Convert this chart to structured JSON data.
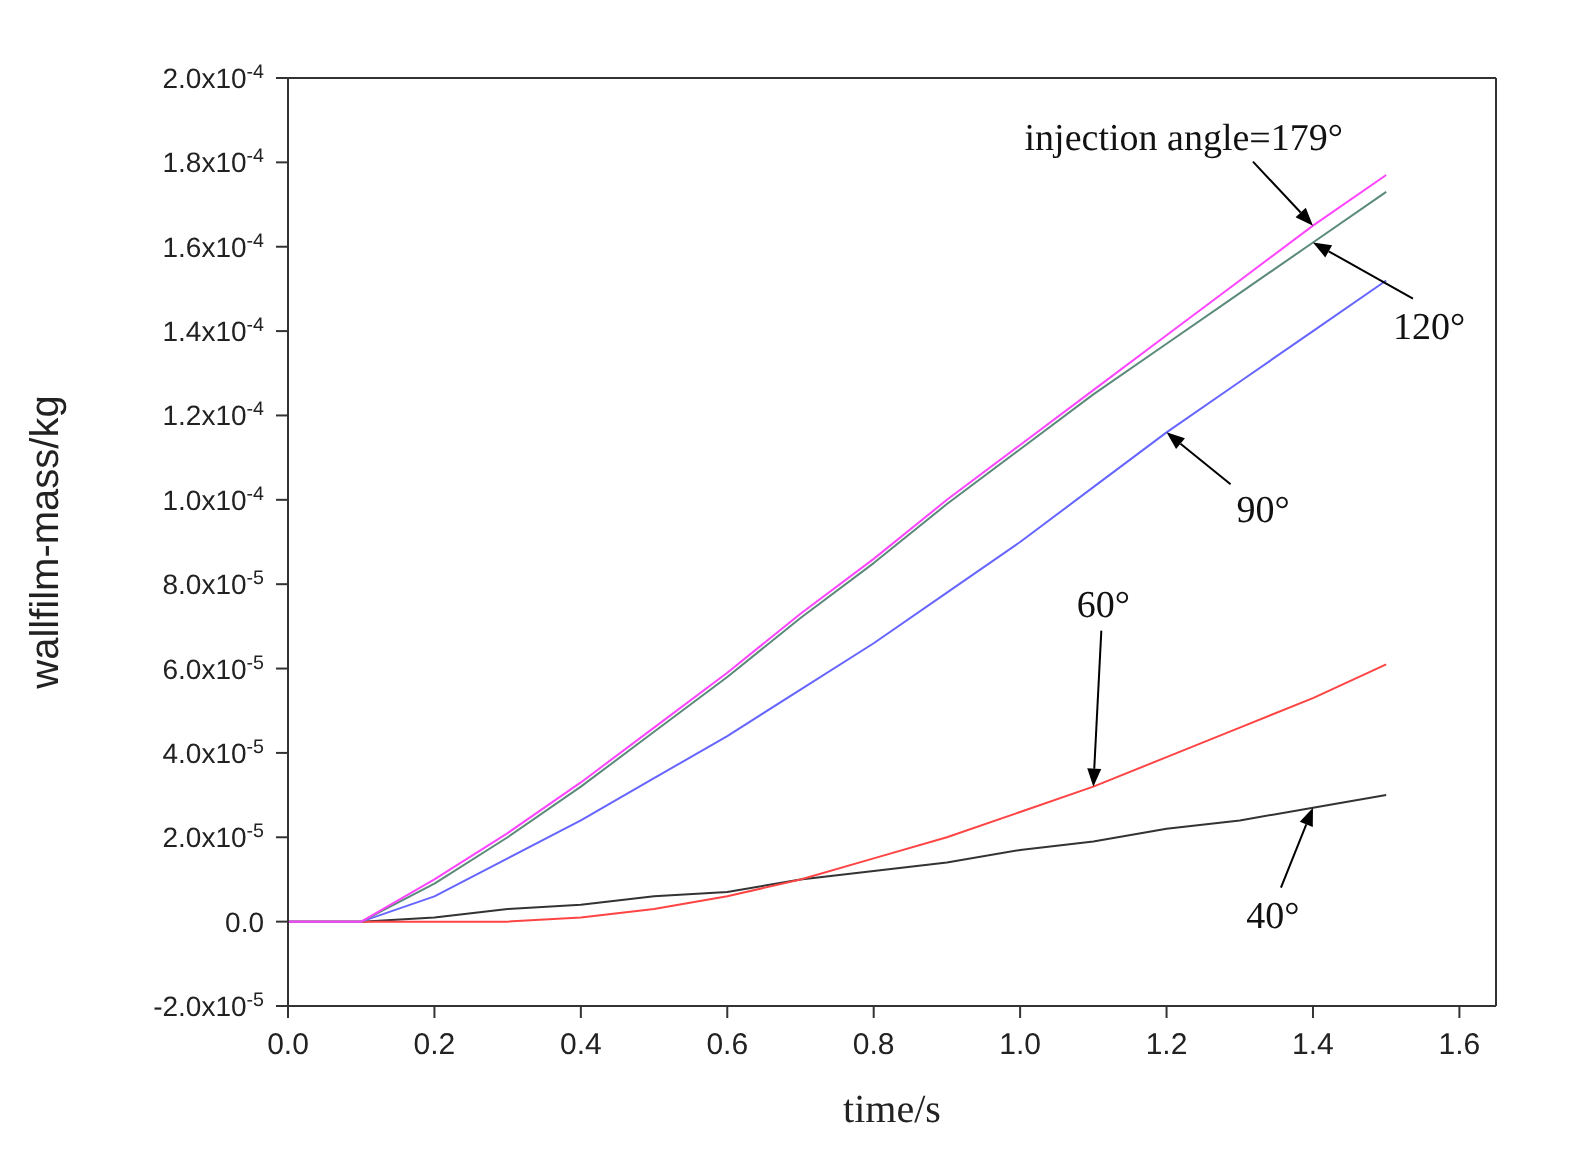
{
  "chart_data": {
    "type": "line",
    "xlabel": "time/s",
    "ylabel": "wallfilm-mass/kg",
    "x": [
      0,
      0.1,
      0.2,
      0.3,
      0.4,
      0.5,
      0.6,
      0.7,
      0.8,
      0.9,
      1.0,
      1.1,
      1.2,
      1.3,
      1.4,
      1.5
    ],
    "series": [
      {
        "name": "injection angle=179°",
        "color": "#ff44ff",
        "values": [
          0,
          0,
          1e-05,
          2.1e-05,
          3.3e-05,
          4.6e-05,
          5.9e-05,
          7.3e-05,
          8.6e-05,
          0.0001,
          0.000113,
          0.000126,
          0.000139,
          0.000152,
          0.000165,
          0.000177
        ]
      },
      {
        "name": "120°",
        "color": "#5a8a7a",
        "values": [
          0,
          0,
          9e-06,
          2e-05,
          3.2e-05,
          4.5e-05,
          5.8e-05,
          7.2e-05,
          8.5e-05,
          9.9e-05,
          0.000112,
          0.000125,
          0.000137,
          0.000149,
          0.000161,
          0.000173
        ]
      },
      {
        "name": "90°",
        "color": "#6666ff",
        "values": [
          0,
          0,
          6e-06,
          1.5e-05,
          2.4e-05,
          3.4e-05,
          4.4e-05,
          5.5e-05,
          6.6e-05,
          7.8e-05,
          9e-05,
          0.000103,
          0.000116,
          0.000128,
          0.00014,
          0.000152
        ]
      },
      {
        "name": "60°",
        "color": "#ff4444",
        "values": [
          0,
          0,
          0,
          0,
          1e-06,
          3e-06,
          6e-06,
          1e-05,
          1.5e-05,
          2e-05,
          2.6e-05,
          3.2e-05,
          3.9e-05,
          4.6e-05,
          5.3e-05,
          6.1e-05
        ]
      },
      {
        "name": "40°",
        "color": "#333333",
        "values": [
          0,
          0,
          1e-06,
          3e-06,
          4e-06,
          6e-06,
          7e-06,
          1e-05,
          1.2e-05,
          1.4e-05,
          1.7e-05,
          1.9e-05,
          2.2e-05,
          2.4e-05,
          2.7e-05,
          3e-05
        ]
      }
    ],
    "xlim": [
      0,
      1.65
    ],
    "xticks": [
      {
        "value": 0,
        "label": "0.0"
      },
      {
        "value": 0.2,
        "label": "0.2"
      },
      {
        "value": 0.4,
        "label": "0.4"
      },
      {
        "value": 0.6,
        "label": "0.6"
      },
      {
        "value": 0.8,
        "label": "0.8"
      },
      {
        "value": 1.0,
        "label": "1.0"
      },
      {
        "value": 1.2,
        "label": "1.2"
      },
      {
        "value": 1.4,
        "label": "1.4"
      },
      {
        "value": 1.6,
        "label": "1.6"
      }
    ],
    "ylim": [
      -2e-05,
      0.0002
    ],
    "yticks": [
      {
        "value": -2e-05,
        "label": "-2.0x10$^{-5}$"
      },
      {
        "value": 0,
        "label": "0.0"
      },
      {
        "value": 2e-05,
        "label": "2.0x10$^{-5}$"
      },
      {
        "value": 4e-05,
        "label": "4.0x10$^{-5}$"
      },
      {
        "value": 6e-05,
        "label": "6.0x10$^{-5}$"
      },
      {
        "value": 8e-05,
        "label": "8.0x10$^{-5}$"
      },
      {
        "value": 0.0001,
        "label": "1.0x10$^{-4}$"
      },
      {
        "value": 0.00012,
        "label": "1.2x10$^{-4}$"
      },
      {
        "value": 0.00014,
        "label": "1.4x10$^{-4}$"
      },
      {
        "value": 0.00016,
        "label": "1.6x10$^{-4}$"
      },
      {
        "value": 0.00018,
        "label": "1.8x10$^{-4}$"
      },
      {
        "value": 0.0002,
        "label": "2.0x10$^{-4}$"
      }
    ],
    "grid": false,
    "legend": false,
    "marker": "none",
    "line_style": "solid"
  }
}
